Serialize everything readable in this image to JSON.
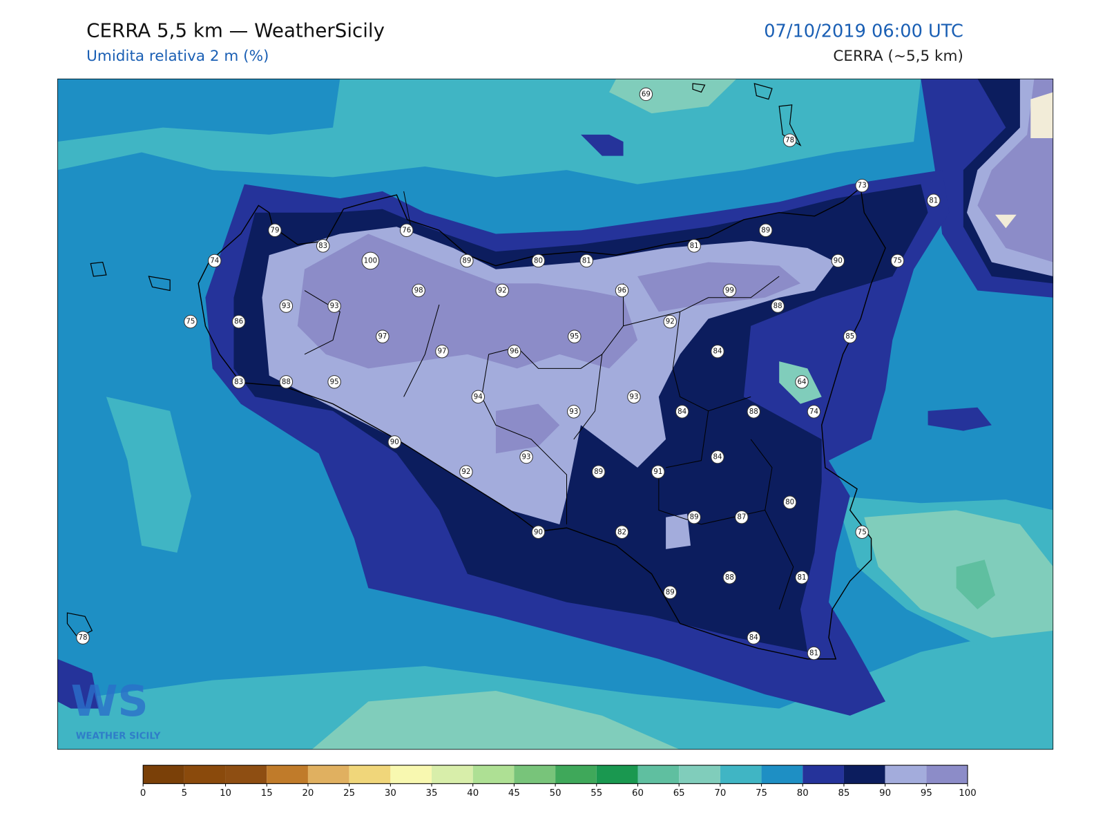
{
  "header": {
    "title": "CERRA 5,5 km — WeatherSicily",
    "subtitle": "Umidita relativa 2 m (%)",
    "datetime": "07/10/2019 06:00 UTC",
    "model": "CERRA (~5,5 km)"
  },
  "stations": [
    69,
    78,
    73,
    81,
    79,
    76,
    89,
    83,
    81,
    74,
    100,
    89,
    80,
    81,
    90,
    75,
    98,
    92,
    96,
    99,
    93,
    93,
    88,
    75,
    86,
    92,
    97,
    95,
    85,
    97,
    96,
    84,
    83,
    88,
    95,
    64,
    94,
    93,
    93,
    84,
    88,
    74,
    90,
    93,
    84,
    92,
    89,
    91,
    80,
    89,
    87,
    90,
    82,
    75,
    88,
    81,
    89,
    78,
    84,
    81
  ],
  "colorbar": {
    "ticks": [
      0,
      5,
      10,
      15,
      20,
      25,
      30,
      35,
      40,
      45,
      50,
      55,
      60,
      65,
      70,
      75,
      80,
      85,
      90,
      95,
      100
    ],
    "colors": [
      "#7a4008",
      "#8a4a0c",
      "#8e4e12",
      "#c07b2a",
      "#e0b060",
      "#f0d67a",
      "#f8f8b0",
      "#d8eeaa",
      "#aee094",
      "#78c47a",
      "#3fa85a",
      "#1a9850",
      "#5fbfa0",
      "#80cdbb",
      "#40b5c4",
      "#1e8fc4",
      "#25339a",
      "#0c1d5e",
      "#a3acdc",
      "#8c8cc8"
    ]
  },
  "logo": {
    "mark": "WS",
    "text": "WEATHER SICILY"
  }
}
